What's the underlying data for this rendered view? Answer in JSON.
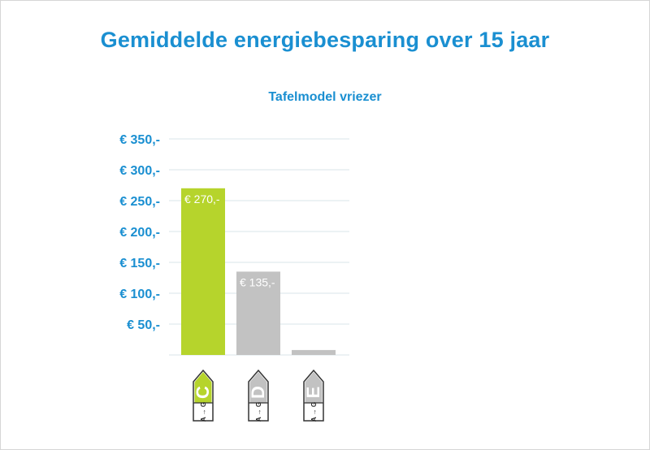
{
  "chart_data": {
    "type": "bar",
    "title": "Gemiddelde energiebesparing over 15 jaar",
    "subtitle": "Tafelmodel vriezer",
    "categories": [
      "C",
      "D",
      "E"
    ],
    "values": [
      270,
      135,
      8
    ],
    "value_labels": [
      "€ 270,-",
      "€ 135,-",
      ""
    ],
    "bar_colors": [
      "#b6d42c",
      "#c2c2c2",
      "#c2c2c2"
    ],
    "ylim": [
      0,
      350
    ],
    "yticks": [
      {
        "value": 50,
        "label": "€ 50,-"
      },
      {
        "value": 100,
        "label": "€ 100,-"
      },
      {
        "value": 150,
        "label": "€ 150,-"
      },
      {
        "value": 200,
        "label": "€ 200,-"
      },
      {
        "value": 250,
        "label": "€ 250,-"
      },
      {
        "value": 300,
        "label": "€ 300,-"
      },
      {
        "value": 350,
        "label": "€ 350,-"
      }
    ],
    "grid": true,
    "energy_labels": [
      {
        "letter": "C",
        "scale_top": "A",
        "scale_bottom": "G",
        "color": "#b6d42c"
      },
      {
        "letter": "D",
        "scale_top": "A",
        "scale_bottom": "G",
        "color": "#c2c2c2"
      },
      {
        "letter": "E",
        "scale_top": "A",
        "scale_bottom": "G",
        "color": "#c2c2c2"
      }
    ],
    "colors": {
      "accent": "#1a8fd1",
      "grid": "#d9e4ea",
      "axis_text": "#1a8fd1"
    }
  }
}
